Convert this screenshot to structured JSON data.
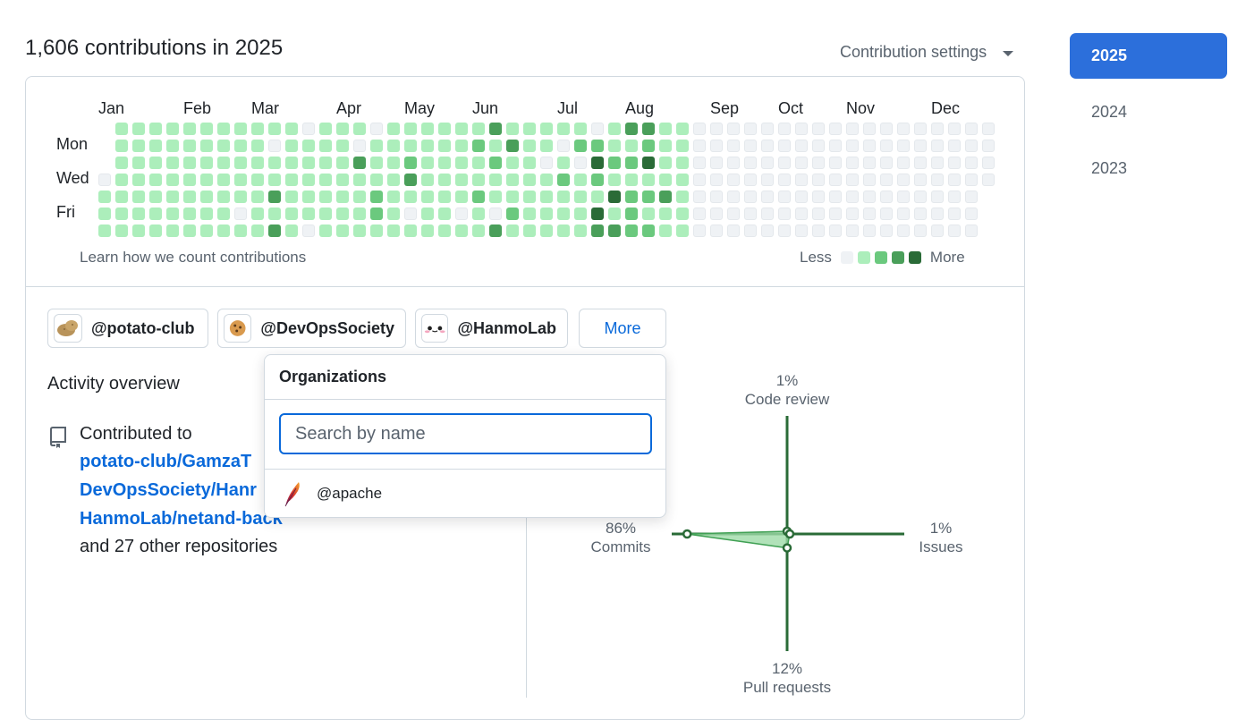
{
  "header": {
    "contributions_title": "1,606 contributions in 2025",
    "settings_label": "Contribution settings"
  },
  "calendar": {
    "months": [
      "Jan",
      "Feb",
      "Mar",
      "Apr",
      "May",
      "Jun",
      "Jul",
      "Aug",
      "Sep",
      "Oct",
      "Nov",
      "Dec"
    ],
    "day_labels": [
      "Mon",
      "Wed",
      "Fri"
    ],
    "learn_link": "Learn how we count contributions",
    "legend_less": "Less",
    "legend_more": "More",
    "level_colors": [
      "#eff2f5",
      "#aceebb",
      "#6bc97e",
      "#4a9f5a",
      "#2a6b37"
    ],
    "first_col_empty_rows": [
      0,
      1,
      2
    ],
    "last_active_col": 34,
    "levels_by_day": [
      [
        1,
        1,
        1,
        1,
        1,
        1,
        1,
        1,
        1,
        1,
        1,
        1,
        0,
        1,
        1,
        1,
        0,
        1,
        1,
        1,
        1,
        1,
        1,
        3,
        1,
        1,
        1,
        1,
        1,
        0,
        1,
        3,
        3,
        1,
        1,
        1
      ],
      [
        1,
        1,
        1,
        1,
        1,
        1,
        1,
        1,
        1,
        1,
        0,
        1,
        1,
        1,
        1,
        0,
        1,
        1,
        1,
        1,
        1,
        1,
        2,
        1,
        3,
        1,
        1,
        0,
        2,
        2,
        1,
        1,
        2,
        1,
        1,
        0
      ],
      [
        1,
        1,
        1,
        1,
        1,
        1,
        1,
        1,
        1,
        1,
        1,
        1,
        1,
        1,
        1,
        3,
        1,
        1,
        2,
        1,
        1,
        1,
        1,
        2,
        1,
        1,
        0,
        1,
        0,
        4,
        2,
        2,
        4,
        1,
        1,
        0
      ],
      [
        0,
        1,
        1,
        1,
        1,
        1,
        1,
        1,
        1,
        1,
        1,
        1,
        1,
        1,
        1,
        1,
        1,
        1,
        3,
        1,
        1,
        1,
        1,
        1,
        1,
        1,
        1,
        2,
        1,
        2,
        1,
        1,
        1,
        1,
        1,
        0
      ],
      [
        1,
        1,
        1,
        1,
        1,
        1,
        1,
        1,
        1,
        1,
        3,
        1,
        1,
        1,
        1,
        1,
        2,
        1,
        1,
        1,
        1,
        1,
        2,
        1,
        1,
        1,
        1,
        1,
        1,
        1,
        4,
        2,
        2,
        3,
        1,
        0
      ],
      [
        1,
        1,
        1,
        1,
        1,
        1,
        1,
        1,
        0,
        1,
        1,
        1,
        1,
        1,
        1,
        1,
        2,
        1,
        0,
        1,
        1,
        0,
        1,
        0,
        2,
        1,
        1,
        1,
        1,
        4,
        1,
        2,
        1,
        1,
        1,
        0
      ],
      [
        1,
        1,
        1,
        1,
        1,
        1,
        1,
        1,
        1,
        1,
        3,
        1,
        0,
        1,
        1,
        1,
        1,
        1,
        1,
        1,
        1,
        1,
        1,
        3,
        1,
        1,
        1,
        1,
        1,
        3,
        3,
        2,
        2,
        1,
        1,
        0
      ]
    ]
  },
  "orgs": {
    "chips": [
      "@potato-club",
      "@DevOpsSociety",
      "@HanmoLab"
    ],
    "more_label": "More"
  },
  "dropdown": {
    "title": "Organizations",
    "search_placeholder": "Search by name",
    "items": [
      "@apache"
    ]
  },
  "activity": {
    "title": "Activity overview",
    "contributed_to": "Contributed to",
    "repos": [
      "potato-club/GamzaT",
      "DevOpsSociety/Hanr",
      "HanmoLab/netand-back"
    ],
    "others": "and 27 other repositories"
  },
  "radar": {
    "code_review": {
      "pct": "1%",
      "label": "Code review",
      "value": 1
    },
    "issues": {
      "pct": "1%",
      "label": "Issues",
      "value": 1
    },
    "pull_requests": {
      "pct": "12%",
      "label": "Pull requests",
      "value": 12
    },
    "commits": {
      "pct": "86%",
      "label": "Commits",
      "value": 86
    }
  },
  "years": [
    "2025",
    "2024",
    "2023"
  ],
  "selected_year": "2025"
}
